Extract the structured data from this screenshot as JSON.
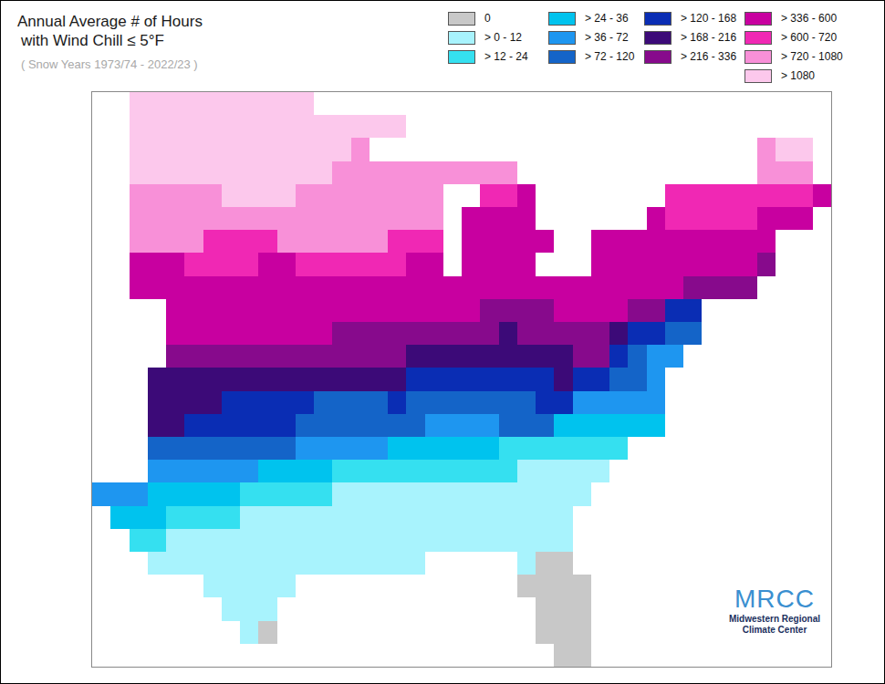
{
  "chart_data": {
    "type": "heatmap",
    "title": [
      "Annual Average # of Hours",
      "with Wind Chill ≤ 5°F"
    ],
    "subtitle": "( Snow Years 1973/74 - 2022/23 )",
    "credit": [
      "MRCC",
      "Midwestern Regional",
      "Climate Center"
    ],
    "tick_labels": false,
    "grid": false,
    "xlim": [
      -106.5,
      -66.5
    ],
    "ylim": [
      24.5,
      49.5
    ],
    "classes": [
      {
        "label": "0",
        "min": 0,
        "max": 0,
        "color": "#c8c8c8"
      },
      {
        "label": "> 0 - 12",
        "min": 0,
        "max": 12,
        "color": "#a8f3fd"
      },
      {
        "label": "> 12 - 24",
        "min": 12,
        "max": 24,
        "color": "#35e0f0"
      },
      {
        "label": "> 24 - 36",
        "min": 24,
        "max": 36,
        "color": "#00c3ee"
      },
      {
        "label": "> 36 - 72",
        "min": 36,
        "max": 72,
        "color": "#1e96f0"
      },
      {
        "label": "> 72 - 120",
        "min": 72,
        "max": 120,
        "color": "#1464c8"
      },
      {
        "label": "> 120 - 168",
        "min": 120,
        "max": 168,
        "color": "#0a2db4"
      },
      {
        "label": "> 168 - 216",
        "min": 168,
        "max": 216,
        "color": "#3c0a78"
      },
      {
        "label": "> 216 - 336",
        "min": 216,
        "max": 336,
        "color": "#870a8c"
      },
      {
        "label": "> 336 - 600",
        "min": 336,
        "max": 600,
        "color": "#c800a0"
      },
      {
        "label": "> 600 - 720",
        "min": 600,
        "max": 720,
        "color": "#f028b4"
      },
      {
        "label": "> 720 - 1080",
        "min": 720,
        "max": 1080,
        "color": "#f890d8"
      },
      {
        "label": "> 1080",
        "min": 1080,
        "max": null,
        "color": "#fcc8ec"
      }
    ],
    "x": [
      -106,
      -105,
      -104,
      -103,
      -102,
      -101,
      -100,
      -99,
      -98,
      -97,
      -96,
      -95,
      -94,
      -93,
      -92,
      -91,
      -90,
      -89,
      -88,
      -87,
      -86,
      -85,
      -84,
      -83,
      -82,
      -81,
      -80,
      -79,
      -78,
      -77,
      -76,
      -75,
      -74,
      -73,
      -72,
      -71,
      -70,
      -69,
      -68,
      -67
    ],
    "y": [
      49,
      48,
      47,
      46,
      45,
      44,
      43,
      42,
      41,
      40,
      39,
      38,
      37,
      36,
      35,
      34,
      33,
      32,
      31,
      30,
      29,
      28,
      27,
      26,
      25
    ],
    "z": [
      [
        null,
        null,
        1200,
        1200,
        1200,
        1200,
        1200,
        1200,
        1200,
        1200,
        1200,
        1200,
        null,
        null,
        null,
        null,
        null,
        null,
        null,
        null,
        null,
        null,
        null,
        null,
        null,
        null,
        null,
        null,
        null,
        null,
        null,
        null,
        null,
        null,
        null,
        null,
        null,
        null,
        null,
        null
      ],
      [
        null,
        null,
        1200,
        1200,
        1200,
        1200,
        1200,
        1200,
        1200,
        1200,
        1200,
        1200,
        1200,
        1200,
        1200,
        1200,
        1200,
        null,
        null,
        null,
        null,
        null,
        null,
        null,
        null,
        null,
        null,
        null,
        null,
        null,
        null,
        null,
        null,
        null,
        null,
        null,
        null,
        null,
        null,
        null
      ],
      [
        null,
        null,
        1200,
        1200,
        1200,
        1200,
        1200,
        1200,
        1200,
        1200,
        1200,
        1200,
        1200,
        1200,
        900,
        null,
        null,
        null,
        null,
        null,
        null,
        null,
        null,
        null,
        null,
        null,
        null,
        null,
        null,
        null,
        null,
        null,
        null,
        null,
        null,
        null,
        900,
        1200,
        1200,
        null
      ],
      [
        null,
        null,
        1200,
        1200,
        1200,
        1200,
        1200,
        1200,
        1200,
        1200,
        1200,
        1200,
        1200,
        900,
        900,
        900,
        900,
        900,
        900,
        900,
        900,
        900,
        900,
        null,
        null,
        null,
        null,
        null,
        null,
        null,
        null,
        null,
        null,
        null,
        null,
        null,
        900,
        900,
        900,
        null
      ],
      [
        null,
        null,
        900,
        900,
        900,
        900,
        900,
        1200,
        1200,
        1200,
        1200,
        900,
        900,
        900,
        900,
        900,
        900,
        900,
        900,
        null,
        null,
        660,
        660,
        468,
        null,
        null,
        null,
        null,
        null,
        null,
        null,
        660,
        660,
        660,
        660,
        660,
        660,
        660,
        660,
        468
      ],
      [
        null,
        null,
        900,
        900,
        900,
        900,
        900,
        900,
        900,
        900,
        900,
        900,
        900,
        900,
        900,
        900,
        900,
        900,
        900,
        null,
        468,
        468,
        468,
        468,
        null,
        null,
        null,
        null,
        null,
        null,
        468,
        660,
        660,
        660,
        660,
        660,
        468,
        468,
        468,
        null
      ],
      [
        null,
        null,
        900,
        900,
        900,
        900,
        660,
        660,
        660,
        660,
        900,
        900,
        900,
        900,
        900,
        900,
        660,
        660,
        660,
        null,
        468,
        468,
        468,
        468,
        468,
        null,
        null,
        468,
        468,
        468,
        468,
        468,
        468,
        468,
        468,
        468,
        468,
        null,
        null,
        null
      ],
      [
        null,
        null,
        468,
        468,
        468,
        660,
        660,
        660,
        660,
        468,
        468,
        660,
        660,
        660,
        660,
        660,
        660,
        468,
        468,
        null,
        468,
        468,
        468,
        468,
        null,
        null,
        null,
        468,
        468,
        468,
        468,
        468,
        468,
        468,
        468,
        468,
        276,
        null,
        null,
        null
      ],
      [
        null,
        null,
        468,
        468,
        468,
        468,
        468,
        468,
        468,
        468,
        468,
        468,
        468,
        468,
        468,
        468,
        468,
        468,
        468,
        468,
        468,
        468,
        468,
        468,
        468,
        468,
        468,
        468,
        468,
        468,
        468,
        468,
        276,
        276,
        276,
        276,
        null,
        null,
        null,
        null
      ],
      [
        null,
        null,
        null,
        null,
        468,
        468,
        468,
        468,
        468,
        468,
        468,
        468,
        468,
        468,
        468,
        468,
        468,
        468,
        468,
        468,
        468,
        276,
        276,
        276,
        276,
        468,
        468,
        468,
        468,
        276,
        276,
        144,
        144,
        null,
        null,
        null,
        null,
        null,
        null,
        null
      ],
      [
        null,
        null,
        null,
        null,
        468,
        468,
        468,
        468,
        468,
        468,
        468,
        468,
        468,
        276,
        276,
        276,
        276,
        276,
        276,
        276,
        276,
        276,
        192,
        276,
        276,
        276,
        276,
        276,
        192,
        144,
        144,
        96,
        96,
        null,
        null,
        null,
        null,
        null,
        null,
        null
      ],
      [
        null,
        null,
        null,
        null,
        276,
        276,
        276,
        276,
        276,
        276,
        276,
        276,
        276,
        276,
        276,
        276,
        276,
        192,
        192,
        192,
        192,
        192,
        192,
        192,
        192,
        192,
        276,
        276,
        144,
        96,
        54,
        54,
        null,
        null,
        null,
        null,
        null,
        null,
        null,
        null
      ],
      [
        null,
        null,
        null,
        192,
        192,
        192,
        192,
        192,
        192,
        192,
        192,
        192,
        192,
        192,
        192,
        192,
        192,
        144,
        144,
        144,
        144,
        144,
        144,
        144,
        144,
        192,
        144,
        144,
        96,
        96,
        54,
        null,
        null,
        null,
        null,
        null,
        null,
        null,
        null,
        null
      ],
      [
        null,
        null,
        null,
        192,
        192,
        192,
        192,
        144,
        144,
        144,
        144,
        144,
        96,
        96,
        96,
        96,
        144,
        96,
        96,
        96,
        96,
        96,
        96,
        96,
        144,
        144,
        54,
        54,
        54,
        54,
        54,
        null,
        null,
        null,
        null,
        null,
        null,
        null,
        null,
        null
      ],
      [
        null,
        null,
        null,
        192,
        192,
        144,
        144,
        144,
        144,
        144,
        144,
        96,
        96,
        96,
        96,
        96,
        96,
        96,
        54,
        54,
        54,
        54,
        96,
        96,
        96,
        30,
        30,
        30,
        30,
        30,
        30,
        null,
        null,
        null,
        null,
        null,
        null,
        null,
        null,
        null
      ],
      [
        null,
        null,
        null,
        96,
        96,
        96,
        96,
        96,
        96,
        96,
        96,
        54,
        54,
        54,
        54,
        54,
        30,
        30,
        30,
        30,
        30,
        30,
        18,
        18,
        18,
        18,
        18,
        18,
        18,
        null,
        null,
        null,
        null,
        null,
        null,
        null,
        null,
        null,
        null,
        null
      ],
      [
        null,
        null,
        null,
        54,
        54,
        54,
        54,
        54,
        54,
        30,
        30,
        30,
        30,
        18,
        18,
        18,
        18,
        18,
        18,
        18,
        18,
        18,
        18,
        6,
        6,
        6,
        6,
        6,
        null,
        null,
        null,
        null,
        null,
        null,
        null,
        null,
        null,
        null,
        null,
        null
      ],
      [
        54,
        54,
        54,
        30,
        30,
        30,
        30,
        30,
        18,
        18,
        18,
        18,
        18,
        6,
        6,
        6,
        6,
        6,
        6,
        6,
        6,
        6,
        6,
        6,
        6,
        6,
        6,
        null,
        null,
        null,
        null,
        null,
        null,
        null,
        null,
        null,
        null,
        null,
        null,
        null
      ],
      [
        null,
        30,
        30,
        30,
        18,
        18,
        18,
        18,
        6,
        6,
        6,
        6,
        6,
        6,
        6,
        6,
        6,
        6,
        6,
        6,
        6,
        6,
        6,
        6,
        6,
        6,
        null,
        null,
        null,
        null,
        null,
        null,
        null,
        null,
        null,
        null,
        null,
        null,
        null,
        null
      ],
      [
        null,
        null,
        18,
        18,
        6,
        6,
        6,
        6,
        6,
        6,
        6,
        6,
        6,
        6,
        6,
        6,
        6,
        6,
        6,
        6,
        6,
        6,
        6,
        6,
        6,
        6,
        null,
        null,
        null,
        null,
        null,
        null,
        null,
        null,
        null,
        null,
        null,
        null,
        null,
        null
      ],
      [
        null,
        null,
        null,
        6,
        6,
        6,
        6,
        6,
        6,
        6,
        6,
        6,
        6,
        6,
        6,
        6,
        6,
        6,
        null,
        null,
        null,
        null,
        null,
        6,
        0,
        0,
        null,
        null,
        null,
        null,
        null,
        null,
        null,
        null,
        null,
        null,
        null,
        null,
        null,
        null
      ],
      [
        null,
        null,
        null,
        null,
        null,
        null,
        6,
        6,
        6,
        6,
        6,
        null,
        null,
        null,
        null,
        null,
        null,
        null,
        null,
        null,
        null,
        null,
        null,
        0,
        0,
        0,
        0,
        null,
        null,
        null,
        null,
        null,
        null,
        null,
        null,
        null,
        null,
        null,
        null,
        null
      ],
      [
        null,
        null,
        null,
        null,
        null,
        null,
        null,
        6,
        6,
        6,
        null,
        null,
        null,
        null,
        null,
        null,
        null,
        null,
        null,
        null,
        null,
        null,
        null,
        null,
        0,
        0,
        0,
        null,
        null,
        null,
        null,
        null,
        null,
        null,
        null,
        null,
        null,
        null,
        null,
        null
      ],
      [
        null,
        null,
        null,
        null,
        null,
        null,
        null,
        null,
        6,
        0,
        null,
        null,
        null,
        null,
        null,
        null,
        null,
        null,
        null,
        null,
        null,
        null,
        null,
        null,
        0,
        0,
        0,
        null,
        null,
        null,
        null,
        null,
        null,
        null,
        null,
        null,
        null,
        null,
        null,
        null
      ],
      [
        null,
        null,
        null,
        null,
        null,
        null,
        null,
        null,
        null,
        null,
        null,
        null,
        null,
        null,
        null,
        null,
        null,
        null,
        null,
        null,
        null,
        null,
        null,
        null,
        null,
        0,
        0,
        null,
        null,
        null,
        null,
        null,
        null,
        null,
        null,
        null,
        null,
        null,
        null,
        null
      ]
    ]
  }
}
